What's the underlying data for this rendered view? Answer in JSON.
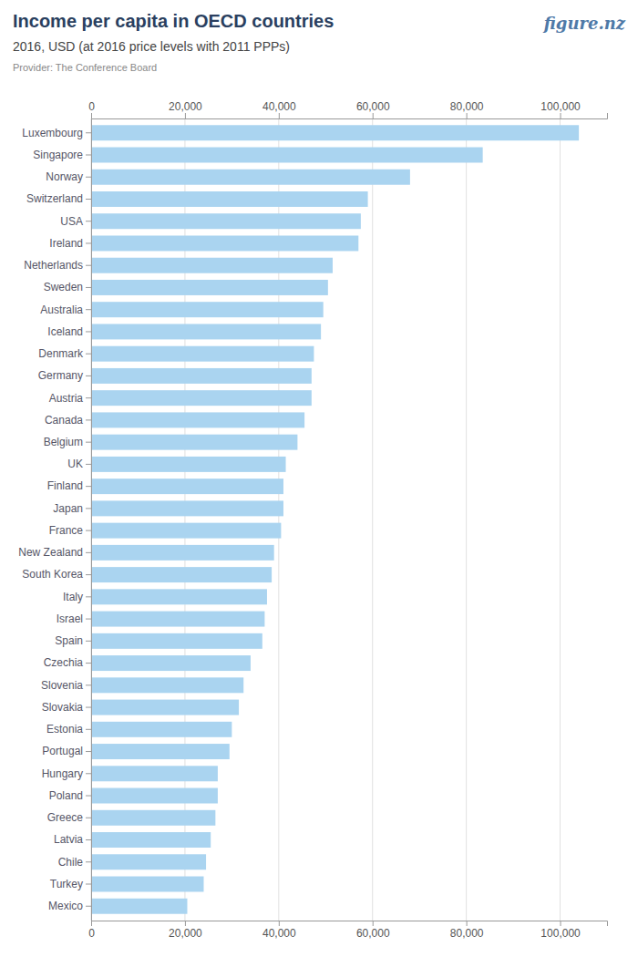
{
  "chart_data": {
    "type": "bar",
    "orientation": "horizontal",
    "title": "Income per capita in OECD countries",
    "subtitle": "2016, USD (at 2016 price levels with 2011 PPPs)",
    "annotations": [
      "Provider: The Conference Board",
      "figure.nz"
    ],
    "categories": [
      "Luxembourg",
      "Singapore",
      "Norway",
      "Switzerland",
      "USA",
      "Ireland",
      "Netherlands",
      "Sweden",
      "Australia",
      "Iceland",
      "Denmark",
      "Germany",
      "Austria",
      "Canada",
      "Belgium",
      "UK",
      "Finland",
      "Japan",
      "France",
      "New Zealand",
      "South Korea",
      "Italy",
      "Israel",
      "Spain",
      "Czechia",
      "Slovenia",
      "Slovakia",
      "Estonia",
      "Portugal",
      "Hungary",
      "Poland",
      "Greece",
      "Latvia",
      "Chile",
      "Turkey",
      "Mexico"
    ],
    "values": [
      104000,
      83500,
      68000,
      59000,
      57500,
      57000,
      51500,
      50500,
      49500,
      49000,
      47500,
      47000,
      47000,
      45500,
      44000,
      41500,
      41000,
      41000,
      40500,
      39000,
      38500,
      37500,
      37000,
      36500,
      34000,
      32500,
      31500,
      30000,
      29500,
      27000,
      27000,
      26500,
      25500,
      24500,
      24000,
      20500
    ],
    "color": "#aad4f0",
    "xlim": [
      0,
      110000
    ],
    "xticks": [
      0,
      {
        "value": 20000,
        "label": "20,000"
      },
      {
        "value": 40000,
        "label": "40,000"
      },
      {
        "value": 60000,
        "label": "60,000"
      },
      {
        "value": 80000,
        "label": "80,000"
      },
      {
        "value": 100000,
        "label": "100,000"
      }
    ],
    "grid": true
  }
}
